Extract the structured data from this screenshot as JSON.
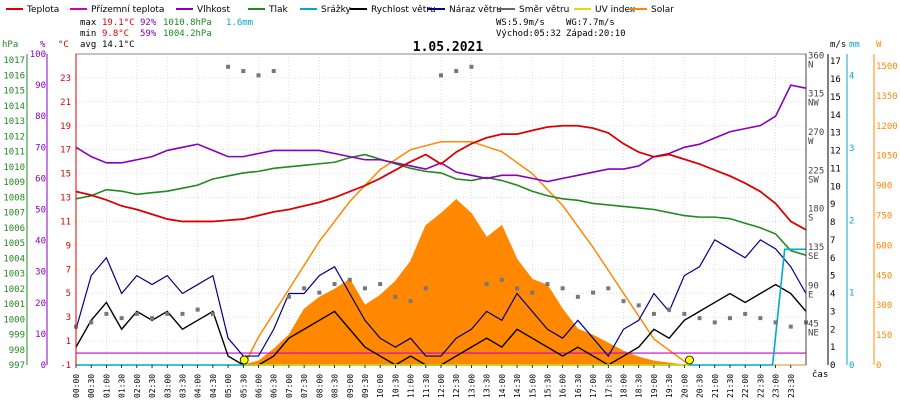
{
  "chart_data": {
    "type": "line",
    "title": "1.05.2021",
    "legend": [
      {
        "name": "Teplota",
        "color": "#dd0000"
      },
      {
        "name": "Přízemní teplota",
        "color": "#cc00cc"
      },
      {
        "name": "Vlhkost",
        "color": "#8800bb"
      },
      {
        "name": "Tlak",
        "color": "#228822"
      },
      {
        "name": "Srážky",
        "color": "#00aacc"
      },
      {
        "name": "Rychlost větru",
        "color": "#000000"
      },
      {
        "name": "Náraz větru",
        "color": "#000088"
      },
      {
        "name": "Směr větru",
        "color": "#666666"
      },
      {
        "name": "UV index",
        "color": "#dddd00"
      },
      {
        "name": "Solar",
        "color": "#ff8800"
      }
    ],
    "stats": {
      "max": {
        "label": "max",
        "temp": "19.1°C",
        "hum": "92%",
        "press": "1010.8hPa",
        "rain": "1.6mm"
      },
      "min": {
        "label": "min",
        "temp": "9.8°C",
        "hum": "59%",
        "press": "1004.2hPa"
      },
      "avg": {
        "label": "avg",
        "temp": "14.1°C"
      }
    },
    "wind_info": {
      "ws": "WS:5.9m/s",
      "wg": "WG:7.7m/s",
      "sunrise": "Východ:05:32",
      "sunset": "Západ:20:10"
    },
    "left_axes": {
      "hpa": {
        "unit": "hPa",
        "color": "#228822",
        "ticks": [
          "1017",
          "1016",
          "1015",
          "1014",
          "1013",
          "1012",
          "1011",
          "1010",
          "1009",
          "1008",
          "1007",
          "1006",
          "1005",
          "1004",
          "1003",
          "1002",
          "1001",
          "1000",
          "999",
          "998",
          "997"
        ]
      },
      "pct": {
        "unit": "%",
        "color": "#8800bb",
        "ticks": [
          "100",
          "90",
          "80",
          "70",
          "60",
          "50",
          "40",
          "30",
          "20",
          "10",
          "0"
        ]
      },
      "temp": {
        "unit": "°C",
        "color": "#dd0000",
        "ticks": [
          "23",
          "21",
          "19",
          "17",
          "15",
          "13",
          "11",
          "9",
          "7",
          "5",
          "3",
          "1",
          "-1"
        ]
      }
    },
    "right_axes": {
      "dir": {
        "unit": "",
        "color": "#444444",
        "ticks": [
          [
            "360",
            "N"
          ],
          [
            "315",
            "NW"
          ],
          [
            "270",
            "W"
          ],
          [
            "225",
            "SW"
          ],
          [
            "180",
            "S"
          ],
          [
            "135",
            "SE"
          ],
          [
            "90",
            "E"
          ],
          [
            "45",
            "NE"
          ]
        ]
      },
      "ms": {
        "unit": "m/s",
        "color": "#000000",
        "ticks": [
          "17",
          "16",
          "15",
          "14",
          "13",
          "12",
          "11",
          "10",
          "9",
          "8",
          "7",
          "6",
          "5",
          "4",
          "3",
          "2",
          "1",
          "0"
        ]
      },
      "mm": {
        "unit": "mm",
        "color": "#00aacc",
        "ticks": [
          "4",
          "3",
          "2",
          "1",
          "0"
        ]
      },
      "w": {
        "unit": "W",
        "color": "#ff8800",
        "ticks": [
          "1500",
          "1350",
          "1200",
          "1050",
          "900",
          "750",
          "600",
          "450",
          "300",
          "150",
          "0"
        ]
      }
    },
    "x_label": "čas",
    "x_ticks": [
      "00:00",
      "00:30",
      "01:00",
      "01:30",
      "02:00",
      "02:30",
      "03:00",
      "03:30",
      "04:00",
      "04:30",
      "05:00",
      "05:30",
      "06:00",
      "06:30",
      "07:00",
      "07:30",
      "08:00",
      "08:30",
      "09:00",
      "09:30",
      "10:00",
      "10:30",
      "11:00",
      "11:30",
      "12:00",
      "12:30",
      "13:00",
      "13:30",
      "14:00",
      "14:30",
      "15:00",
      "15:30",
      "16:00",
      "16:30",
      "17:00",
      "17:30",
      "18:00",
      "18:30",
      "19:00",
      "19:30",
      "20:00",
      "20:30",
      "21:00",
      "21:30",
      "22:00",
      "22:30",
      "23:00",
      "23:30"
    ],
    "series": {
      "temperature_c": {
        "x": [
          0,
          0.5,
          1,
          1.5,
          2,
          2.5,
          3,
          3.5,
          4,
          4.5,
          5,
          5.5,
          6,
          6.5,
          7,
          7.5,
          8,
          8.5,
          9,
          9.5,
          10,
          10.5,
          11,
          11.5,
          12,
          12.5,
          13,
          13.5,
          14,
          14.5,
          15,
          15.5,
          16,
          16.5,
          17,
          17.5,
          18,
          18.5,
          19,
          19.5,
          20,
          20.5,
          21,
          21.5,
          22,
          22.5,
          23,
          23.5,
          24
        ],
        "y": [
          13.5,
          13.2,
          12.8,
          12.3,
          12.0,
          11.6,
          11.2,
          11.0,
          11.0,
          11.0,
          11.1,
          11.2,
          11.5,
          11.8,
          12.0,
          12.3,
          12.6,
          13.0,
          13.5,
          14.0,
          14.6,
          15.3,
          16.0,
          16.6,
          15.8,
          16.8,
          17.5,
          18.0,
          18.3,
          18.3,
          18.6,
          18.9,
          19.0,
          19.0,
          18.8,
          18.4,
          17.5,
          16.8,
          16.4,
          16.6,
          16.2,
          15.8,
          15.3,
          14.8,
          14.2,
          13.5,
          12.5,
          11.0,
          10.3
        ]
      },
      "humidity_pct": {
        "x": [
          0,
          0.5,
          1,
          1.5,
          2,
          2.5,
          3,
          3.5,
          4,
          4.5,
          5,
          5.5,
          6,
          6.5,
          7,
          7.5,
          8,
          8.5,
          9,
          9.5,
          10,
          10.5,
          11,
          11.5,
          12,
          12.5,
          13,
          13.5,
          14,
          14.5,
          15,
          15.5,
          16,
          16.5,
          17,
          17.5,
          18,
          18.5,
          19,
          19.5,
          20,
          20.5,
          21,
          21.5,
          22,
          22.5,
          23,
          23.5,
          24
        ],
        "y": [
          70,
          67,
          65,
          65,
          66,
          67,
          69,
          70,
          71,
          69,
          67,
          67,
          68,
          69,
          69,
          69,
          69,
          68,
          67,
          66,
          66,
          65,
          64,
          63,
          65,
          62,
          61,
          60,
          61,
          61,
          60,
          59,
          60,
          61,
          62,
          63,
          63,
          64,
          67,
          68,
          70,
          71,
          73,
          75,
          76,
          77,
          80,
          90,
          89
        ]
      },
      "ground_temp_c": {
        "x": [
          0,
          24
        ],
        "y": [
          0,
          0
        ]
      },
      "pressure_hpa": {
        "x": [
          0,
          0.5,
          1,
          1.5,
          2,
          2.5,
          3,
          3.5,
          4,
          4.5,
          5,
          5.5,
          6,
          6.5,
          7,
          7.5,
          8,
          8.5,
          9,
          9.5,
          10,
          10.5,
          11,
          11.5,
          12,
          12.5,
          13,
          13.5,
          14,
          14.5,
          15,
          15.5,
          16,
          16.5,
          17,
          17.5,
          18,
          18.5,
          19,
          19.5,
          20,
          20.5,
          21,
          21.5,
          22,
          22.5,
          23,
          23.5,
          24
        ],
        "y": [
          1007.9,
          1008.1,
          1008.5,
          1008.4,
          1008.2,
          1008.3,
          1008.4,
          1008.6,
          1008.8,
          1009.2,
          1009.4,
          1009.6,
          1009.7,
          1009.9,
          1010.0,
          1010.1,
          1010.2,
          1010.3,
          1010.6,
          1010.8,
          1010.5,
          1010.2,
          1009.9,
          1009.7,
          1009.6,
          1009.2,
          1009.1,
          1009.3,
          1009.1,
          1008.8,
          1008.4,
          1008.1,
          1007.9,
          1007.8,
          1007.6,
          1007.5,
          1007.4,
          1007.3,
          1007.2,
          1007.0,
          1006.8,
          1006.7,
          1006.7,
          1006.6,
          1006.3,
          1006.0,
          1005.6,
          1004.5,
          1004.2
        ]
      },
      "rain_mm": {
        "x": [
          0,
          22.9,
          23.0,
          23.3,
          23.8,
          24
        ],
        "y": [
          0,
          0,
          0.4,
          1.6,
          1.6,
          1.6
        ]
      },
      "wind_speed_ms": {
        "x": [
          0,
          0.5,
          1,
          1.5,
          2,
          2.5,
          3,
          3.5,
          4,
          4.5,
          5,
          5.5,
          6,
          6.5,
          7,
          7.5,
          8,
          8.5,
          9,
          9.5,
          10,
          10.5,
          11,
          11.5,
          12,
          12.5,
          13,
          13.5,
          14,
          14.5,
          15,
          15.5,
          16,
          16.5,
          17,
          17.5,
          18,
          18.5,
          19,
          19.5,
          20,
          20.5,
          21,
          21.5,
          22,
          22.5,
          23,
          23.5,
          24
        ],
        "y": [
          1,
          2.5,
          3.5,
          2,
          3,
          2.5,
          3,
          2,
          2.5,
          3,
          0.5,
          0,
          0,
          0.5,
          1.5,
          2,
          2.5,
          3,
          2,
          1,
          0.5,
          0,
          0.5,
          0,
          0,
          0.5,
          1,
          1.5,
          1,
          2,
          1.5,
          1,
          0.5,
          1,
          0.5,
          0,
          0.5,
          1,
          2,
          1.5,
          2.5,
          3,
          3.5,
          4,
          3.5,
          4,
          4.5,
          4,
          3
        ]
      },
      "wind_gust_ms": {
        "x": [
          0,
          0.5,
          1,
          1.5,
          2,
          2.5,
          3,
          3.5,
          4,
          4.5,
          5,
          5.5,
          6,
          6.5,
          7,
          7.5,
          8,
          8.5,
          9,
          9.5,
          10,
          10.5,
          11,
          11.5,
          12,
          12.5,
          13,
          13.5,
          14,
          14.5,
          15,
          15.5,
          16,
          16.5,
          17,
          17.5,
          18,
          18.5,
          19,
          19.5,
          20,
          20.5,
          21,
          21.5,
          22,
          22.5,
          23,
          23.5,
          24
        ],
        "y": [
          2,
          5,
          6,
          4,
          5,
          4.5,
          5,
          4,
          4.5,
          5,
          1.5,
          0.5,
          0.5,
          2,
          4,
          4,
          5,
          5.5,
          4,
          2.5,
          1.5,
          1,
          1.5,
          0.5,
          0.5,
          1.5,
          2,
          3,
          2.5,
          4,
          3,
          2,
          1.5,
          2.5,
          1.5,
          0.5,
          2,
          2.5,
          4,
          3,
          5,
          5.5,
          7,
          6.5,
          6,
          7,
          6.5,
          5.5,
          4
        ]
      },
      "wind_dir_deg": {
        "x": [
          0,
          0.5,
          1,
          1.5,
          2,
          2.5,
          3,
          3.5,
          4,
          4.5,
          5,
          5.5,
          6,
          6.5,
          7,
          7.5,
          8,
          8.5,
          9,
          9.5,
          10,
          10.5,
          11,
          11.5,
          12,
          12.5,
          13,
          13.5,
          14,
          14.5,
          15,
          15.5,
          16,
          16.5,
          17,
          17.5,
          18,
          18.5,
          19,
          19.5,
          20,
          20.5,
          21,
          21.5,
          22,
          22.5,
          23,
          23.5,
          24
        ],
        "y": [
          45,
          50,
          60,
          55,
          60,
          55,
          60,
          60,
          65,
          60,
          350,
          345,
          340,
          345,
          80,
          90,
          85,
          95,
          100,
          90,
          95,
          80,
          75,
          90,
          340,
          345,
          350,
          95,
          100,
          90,
          85,
          95,
          90,
          80,
          85,
          90,
          75,
          70,
          60,
          65,
          60,
          55,
          50,
          55,
          60,
          55,
          50,
          45,
          50
        ]
      },
      "solar_wm2": {
        "x": [
          0,
          5.5,
          6,
          6.5,
          7,
          7.5,
          8,
          8.5,
          9,
          9.5,
          10,
          10.5,
          11,
          11.5,
          12,
          12.5,
          13,
          13.5,
          14,
          14.5,
          15,
          15.5,
          16,
          16.5,
          17,
          17.5,
          18,
          18.5,
          19,
          20,
          24
        ],
        "y": [
          0,
          0,
          20,
          80,
          150,
          280,
          340,
          380,
          430,
          300,
          350,
          420,
          520,
          700,
          760,
          830,
          760,
          640,
          700,
          530,
          430,
          400,
          280,
          180,
          150,
          110,
          70,
          40,
          20,
          0,
          0
        ]
      },
      "solar_theoretical_wm2": {
        "x": [
          5.53,
          6,
          7,
          8,
          9,
          10,
          11,
          12,
          13,
          14,
          15,
          16,
          17,
          18,
          19,
          20.17
        ],
        "y": [
          0,
          140,
          380,
          620,
          820,
          980,
          1080,
          1120,
          1120,
          1070,
          960,
          800,
          590,
          360,
          130,
          0
        ]
      },
      "uv_index": {
        "x": [
          5.53,
          20.17
        ],
        "y": [
          0,
          0
        ]
      }
    },
    "ranges": {
      "temp_c": [
        -1,
        25
      ],
      "hum_pct": [
        0,
        100
      ],
      "press_hpa": [
        997,
        1017.4
      ],
      "wind_ms": [
        0,
        17.4
      ],
      "rain_mm": [
        0,
        4.3
      ],
      "solar_wm2": [
        0,
        1560
      ],
      "dir_deg": [
        0,
        365
      ]
    }
  }
}
